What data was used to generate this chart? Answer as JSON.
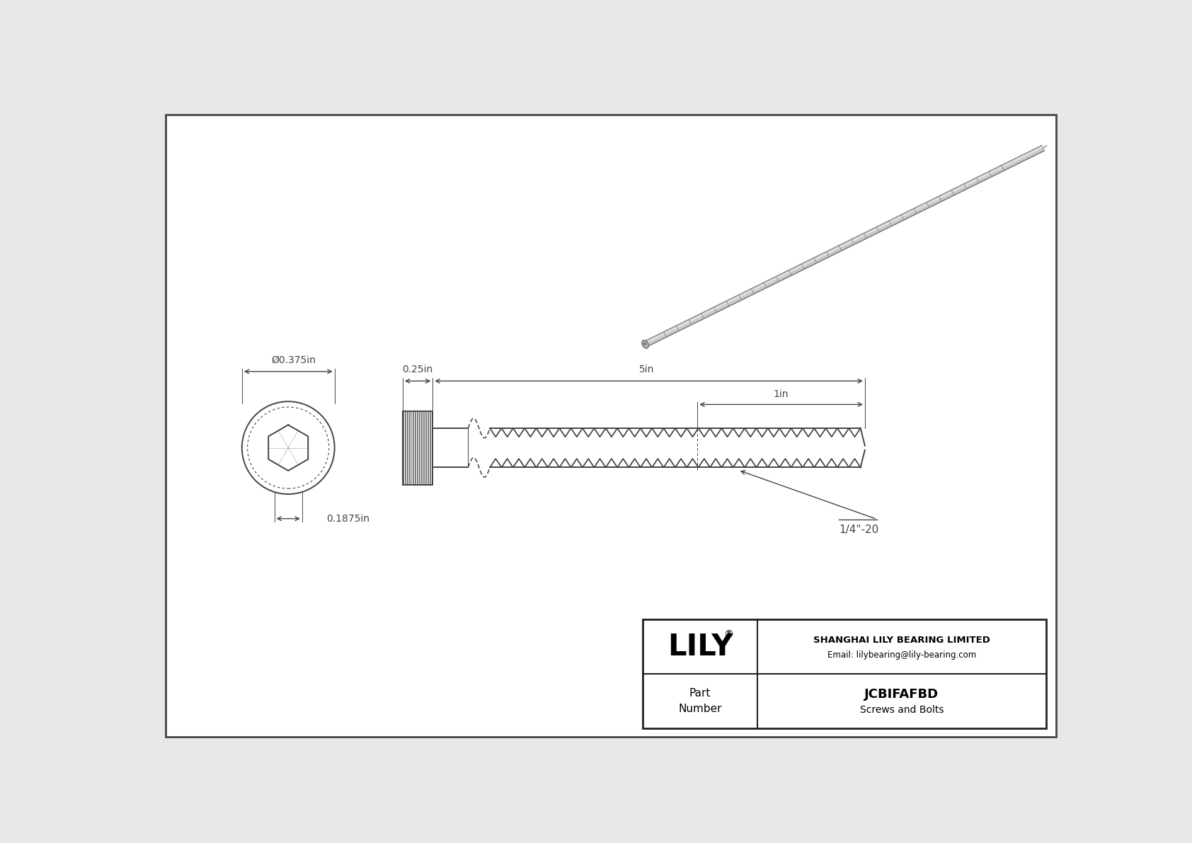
{
  "bg_color": "#e8e8e8",
  "drawing_bg": "#ffffff",
  "border_color": "#444444",
  "line_color": "#444444",
  "dim_color": "#444444",
  "title_company": "SHANGHAI LILY BEARING LIMITED",
  "title_email": "Email: lilybearing@lily-bearing.com",
  "part_label": "Part\nNumber",
  "part_number": "JCBIFAFBD",
  "part_type": "Screws and Bolts",
  "lily_text": "LILY",
  "dim_diameter": "Ø0.375in",
  "dim_head_height": "0.1875in",
  "dim_head_width": "0.25in",
  "dim_total_length": "5in",
  "dim_thread_length": "1in",
  "thread_spec": "1/4\"-20",
  "outer_border_lw": 2.0,
  "inner_lw": 1.4,
  "dim_lw": 1.0
}
